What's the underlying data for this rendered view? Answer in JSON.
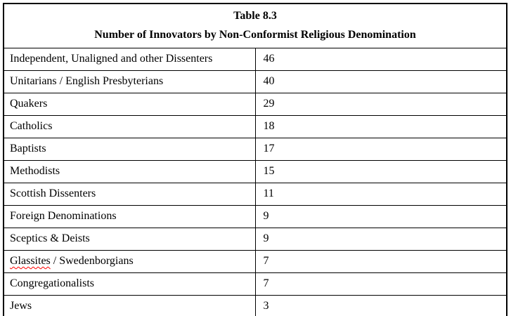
{
  "header": {
    "title": "Table 8.3",
    "subtitle": "Number of Innovators by Non-Conformist Religious Denomination"
  },
  "rows": [
    {
      "parts": [
        {
          "text": "Independent, Unaligned and other Dissenters",
          "misspelled": false
        }
      ],
      "value": "46"
    },
    {
      "parts": [
        {
          "text": "Unitarians / English Presbyterians",
          "misspelled": false
        }
      ],
      "value": "40"
    },
    {
      "parts": [
        {
          "text": "Quakers",
          "misspelled": false
        }
      ],
      "value": "29"
    },
    {
      "parts": [
        {
          "text": "Catholics",
          "misspelled": false
        }
      ],
      "value": "18"
    },
    {
      "parts": [
        {
          "text": "Baptists",
          "misspelled": false
        }
      ],
      "value": "17"
    },
    {
      "parts": [
        {
          "text": "Methodists",
          "misspelled": false
        }
      ],
      "value": "15"
    },
    {
      "parts": [
        {
          "text": "Scottish Dissenters",
          "misspelled": false
        }
      ],
      "value": "11"
    },
    {
      "parts": [
        {
          "text": "Foreign Denominations",
          "misspelled": false
        }
      ],
      "value": "9"
    },
    {
      "parts": [
        {
          "text": "Sceptics & Deists",
          "misspelled": false
        }
      ],
      "value": "9"
    },
    {
      "parts": [
        {
          "text": "Glassites",
          "misspelled": true
        },
        {
          "text": " / Swedenborgians",
          "misspelled": false
        }
      ],
      "value": "7"
    },
    {
      "parts": [
        {
          "text": "Congregationalists",
          "misspelled": false
        }
      ],
      "value": "7"
    },
    {
      "parts": [
        {
          "text": "Jews",
          "misspelled": false
        }
      ],
      "value": "3"
    }
  ],
  "colors": {
    "text": "#000000",
    "border": "#000000",
    "background": "#ffffff",
    "spellcheck_underline": "#ff0000"
  }
}
